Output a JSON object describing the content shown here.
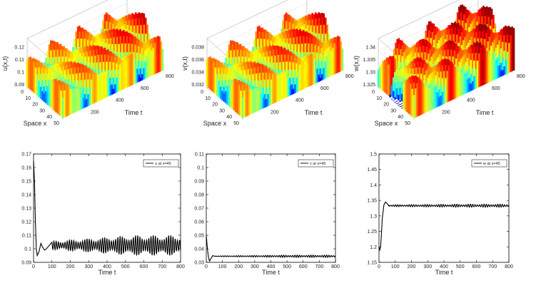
{
  "chart_data": [
    {
      "type": "surface",
      "zlabel": "u(x,t)",
      "xlabel": "Space x",
      "ylabel": "Time t",
      "zticks": [
        "0.09",
        "0.1",
        "0.11",
        "0.12"
      ],
      "xticks": [
        "0",
        "10",
        "20",
        "30",
        "40",
        "50"
      ],
      "tticks": [
        "200",
        "400",
        "600",
        "800"
      ],
      "zlim": [
        0.088,
        0.122
      ],
      "mean": 0.102,
      "amp": 0.012,
      "colormap": "jet"
    },
    {
      "type": "surface",
      "zlabel": "v(x,t)",
      "xlabel": "Space x",
      "ylabel": "Time t",
      "zticks": [
        "0.032",
        "0.034",
        "0.036",
        "0.038"
      ],
      "xticks": [
        "0",
        "10",
        "20",
        "30",
        "40",
        "50"
      ],
      "tticks": [
        "200",
        "400",
        "600",
        "800"
      ],
      "zlim": [
        0.0315,
        0.0385
      ],
      "mean": 0.0345,
      "amp": 0.0022,
      "colormap": "jet"
    },
    {
      "type": "surface",
      "zlabel": "w(x,t)",
      "xlabel": "Space x",
      "ylabel": "Time t",
      "zticks": [
        "1.325",
        "1.33",
        "1.335",
        "1.34"
      ],
      "xticks": [
        "0",
        "10",
        "20",
        "30",
        "40",
        "50"
      ],
      "tticks": [
        "200",
        "400",
        "600",
        "800"
      ],
      "zlim": [
        1.3235,
        1.3415
      ],
      "mean": 1.333,
      "amp": 0.006,
      "colormap": "jet"
    },
    {
      "type": "line",
      "xlabel": "Time t",
      "legend": "u at x=45",
      "xlim": [
        0,
        800
      ],
      "ylim": [
        0.09,
        0.17
      ],
      "xticks": [
        "0",
        "100",
        "200",
        "300",
        "400",
        "500",
        "600",
        "700",
        "800"
      ],
      "yticks": [
        "0.09",
        "0.1",
        "0.11",
        "0.12",
        "0.13",
        "0.14",
        "0.15",
        "0.16",
        "0.17"
      ],
      "points": [
        [
          0,
          0.165
        ],
        [
          5,
          0.15
        ],
        [
          10,
          0.12
        ],
        [
          15,
          0.1
        ],
        [
          20,
          0.095
        ],
        [
          30,
          0.098
        ],
        [
          40,
          0.104
        ],
        [
          50,
          0.101
        ],
        [
          60,
          0.099
        ],
        [
          70,
          0.1
        ]
      ],
      "osc": {
        "start": 100,
        "mean": 0.1025,
        "amp_start": 0.003,
        "amp_end": 0.0075,
        "period": 12
      }
    },
    {
      "type": "line",
      "xlabel": "Time t",
      "legend": "v at x=45",
      "xlim": [
        0,
        800
      ],
      "ylim": [
        0.03,
        0.11
      ],
      "xticks": [
        "0",
        "100",
        "200",
        "300",
        "400",
        "500",
        "600",
        "700",
        "800"
      ],
      "yticks": [
        "0.03",
        "0.04",
        "0.05",
        "0.06",
        "0.07",
        "0.08",
        "0.09",
        "0.1",
        "0.11"
      ],
      "points": [
        [
          0,
          0.05
        ],
        [
          5,
          0.043
        ],
        [
          10,
          0.037
        ],
        [
          15,
          0.033
        ],
        [
          20,
          0.031
        ],
        [
          30,
          0.033
        ],
        [
          40,
          0.035
        ],
        [
          50,
          0.0345
        ],
        [
          60,
          0.0345
        ]
      ],
      "osc": {
        "start": 60,
        "mean": 0.0345,
        "amp_start": 0.0003,
        "amp_end": 0.0009,
        "period": 14
      }
    },
    {
      "type": "line",
      "xlabel": "Time t",
      "legend": "w at x=45",
      "xlim": [
        0,
        800
      ],
      "ylim": [
        1.15,
        1.5
      ],
      "xticks": [
        "0",
        "100",
        "200",
        "300",
        "400",
        "500",
        "600",
        "700",
        "800"
      ],
      "yticks": [
        "1.15",
        "1.2",
        "1.25",
        "1.3",
        "1.35",
        "1.4",
        "1.45",
        "1.5"
      ],
      "points": [
        [
          0,
          1.2
        ],
        [
          5,
          1.19
        ],
        [
          10,
          1.2
        ],
        [
          15,
          1.24
        ],
        [
          20,
          1.29
        ],
        [
          30,
          1.335
        ],
        [
          40,
          1.345
        ],
        [
          50,
          1.34
        ],
        [
          60,
          1.333
        ]
      ],
      "osc": {
        "start": 60,
        "mean": 1.333,
        "amp_start": 0.003,
        "amp_end": 0.005,
        "period": 14
      }
    }
  ]
}
